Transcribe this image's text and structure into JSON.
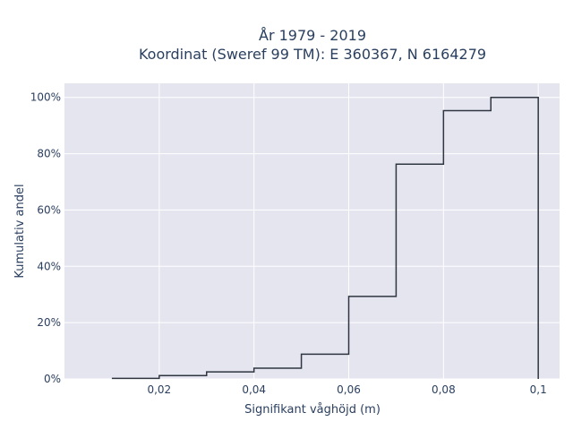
{
  "chart_data": {
    "type": "line",
    "line_shape": "step",
    "title_line1": "År 1979 - 2019",
    "title_line2": "Koordinat (Sweref 99 TM): E 360367, N 6164279",
    "xlabel": "Signifikant våghöjd (m)",
    "ylabel": "Kumulativ andel",
    "xlim": [
      0.0,
      0.1045
    ],
    "ylim": [
      0,
      1.05
    ],
    "x_ticks": [
      {
        "value": 0.02,
        "label": "0,02"
      },
      {
        "value": 0.04,
        "label": "0,04"
      },
      {
        "value": 0.06,
        "label": "0,06"
      },
      {
        "value": 0.08,
        "label": "0,08"
      },
      {
        "value": 0.1,
        "label": "0,1"
      }
    ],
    "y_ticks": [
      {
        "value": 0,
        "label": "0%"
      },
      {
        "value": 0.2,
        "label": "20%"
      },
      {
        "value": 0.4,
        "label": "40%"
      },
      {
        "value": 0.6,
        "label": "60%"
      },
      {
        "value": 0.8,
        "label": "80%"
      },
      {
        "value": 1.0,
        "label": "100%"
      }
    ],
    "bins": [
      {
        "x0": 0.01,
        "x1": 0.02,
        "y": 0.002
      },
      {
        "x0": 0.02,
        "x1": 0.03,
        "y": 0.012
      },
      {
        "x0": 0.03,
        "x1": 0.04,
        "y": 0.025
      },
      {
        "x0": 0.04,
        "x1": 0.05,
        "y": 0.038
      },
      {
        "x0": 0.05,
        "x1": 0.06,
        "y": 0.088
      },
      {
        "x0": 0.06,
        "x1": 0.07,
        "y": 0.293
      },
      {
        "x0": 0.07,
        "x1": 0.08,
        "y": 0.763
      },
      {
        "x0": 0.08,
        "x1": 0.09,
        "y": 0.953
      },
      {
        "x0": 0.09,
        "x1": 0.1,
        "y": 1.0
      }
    ],
    "grid": true,
    "colors": {
      "background": "#e5e5f0",
      "grid": "#ffffff",
      "line": "#2f3640",
      "text": "#2a3f5f"
    }
  }
}
